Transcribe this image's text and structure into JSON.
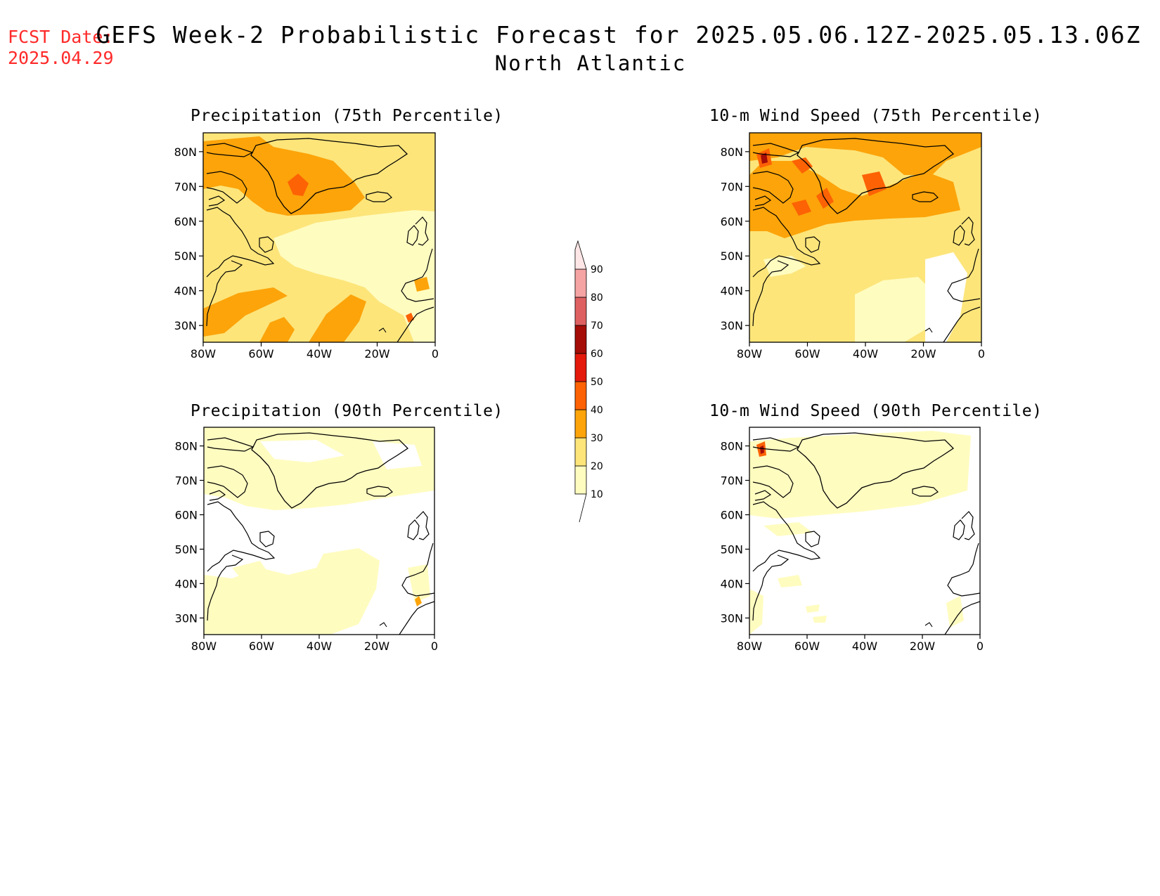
{
  "header": {
    "fcst_label": "FCST Date:",
    "fcst_date": "2025.04.29",
    "title": "GEFS Week-2 Probabilistic Forecast for 2025.05.06.12Z-2025.05.13.06Z",
    "region": "North Atlantic"
  },
  "panels": [
    {
      "id": "precip75",
      "title": "Precipitation (75th Percentile)"
    },
    {
      "id": "wind75",
      "title": "10-m Wind Speed (75th Percentile)"
    },
    {
      "id": "precip90",
      "title": "Precipitation (90th Percentile)"
    },
    {
      "id": "wind90",
      "title": "10-m Wind Speed (90th Percentile)"
    }
  ],
  "axes": {
    "lat_ticks": [
      "80N",
      "70N",
      "60N",
      "50N",
      "40N",
      "30N"
    ],
    "lon_ticks": [
      "80W",
      "60W",
      "40W",
      "20W",
      "0"
    ]
  },
  "colorbar": {
    "levels": [
      "10",
      "20",
      "30",
      "40",
      "50",
      "60",
      "70",
      "80",
      "90"
    ],
    "colors": [
      "#fffcc0",
      "#fde57a",
      "#fca40a",
      "#fd6204",
      "#e41a0c",
      "#a50d08",
      "#de6060",
      "#f5a3a3",
      "#ffe6e6"
    ]
  }
}
